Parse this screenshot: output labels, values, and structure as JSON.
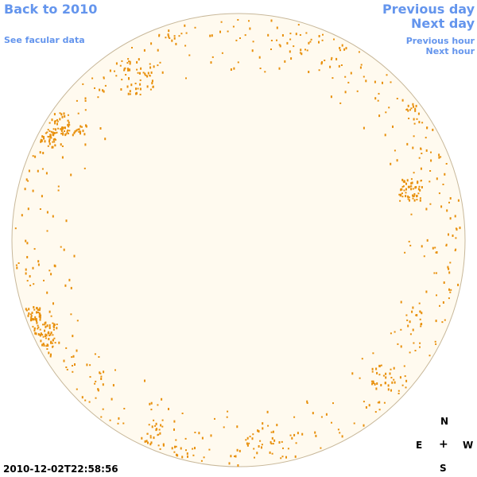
{
  "nav": {
    "back": "Back to 2010",
    "facular": "See facular data",
    "previous_day": "Previous day",
    "next_day": "Next day",
    "previous_hour": "Previous hour",
    "next_hour": "Next hour"
  },
  "compass": {
    "north": "N",
    "center": "+",
    "east": "E",
    "west": "W",
    "south": "S"
  },
  "timestamp": "2010-12-02T22:58:56",
  "colors": {
    "link": "#6495ed",
    "disk_fill": "#fffaef",
    "disk_stroke": "#c8b89a",
    "facula": "#e8900c"
  }
}
